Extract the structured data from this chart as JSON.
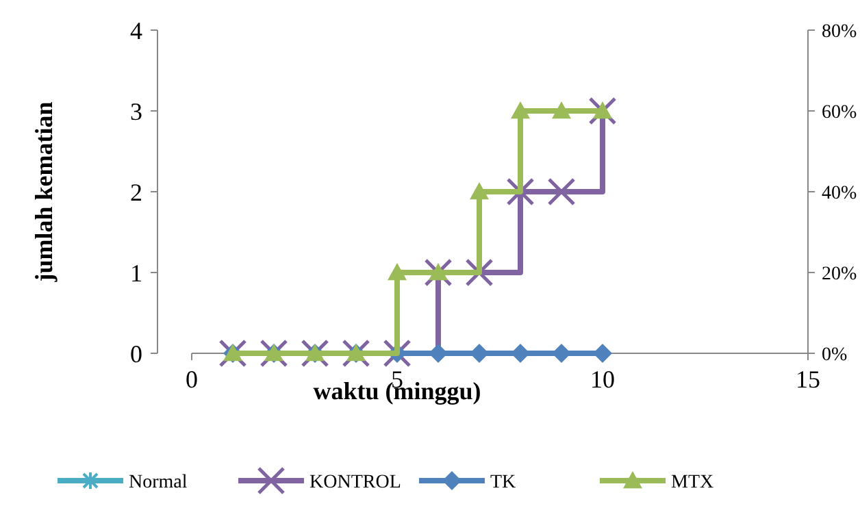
{
  "chart_data": {
    "type": "step",
    "xlabel": "waktu (minggu)",
    "ylabel": "jumlah kematian",
    "x": [
      1,
      2,
      3,
      4,
      5,
      6,
      7,
      8,
      9,
      10
    ],
    "series": [
      {
        "name": "Normal",
        "color": "#4bacc6",
        "marker": "star",
        "values": [
          null,
          null,
          null,
          null,
          null,
          null,
          null,
          null,
          null,
          null
        ]
      },
      {
        "name": "KONTROL",
        "color": "#8064a2",
        "marker": "cross",
        "values": [
          0,
          0,
          0,
          0,
          0,
          1,
          1,
          2,
          2,
          3
        ]
      },
      {
        "name": "TK",
        "color": "#4f81bd",
        "marker": "diamond",
        "values": [
          0,
          0,
          0,
          0,
          0,
          0,
          0,
          0,
          0,
          0
        ]
      },
      {
        "name": "MTX",
        "color": "#9bbb59",
        "marker": "triangle",
        "values": [
          0,
          0,
          0,
          0,
          1,
          1,
          2,
          3,
          3,
          3
        ]
      }
    ],
    "xlim": [
      0,
      15
    ],
    "xticks": [
      0,
      5,
      10,
      15
    ],
    "ylim": [
      0,
      4
    ],
    "yticks": [
      0,
      1,
      2,
      3,
      4
    ],
    "y2lim": [
      0,
      80
    ],
    "y2ticks": [
      {
        "value": 0,
        "label": "0%"
      },
      {
        "value": 20,
        "label": "20%"
      },
      {
        "value": 40,
        "label": "40%"
      },
      {
        "value": 60,
        "label": "60%"
      },
      {
        "value": 80,
        "label": "80%"
      }
    ],
    "legend": "bottom",
    "grid": false
  }
}
